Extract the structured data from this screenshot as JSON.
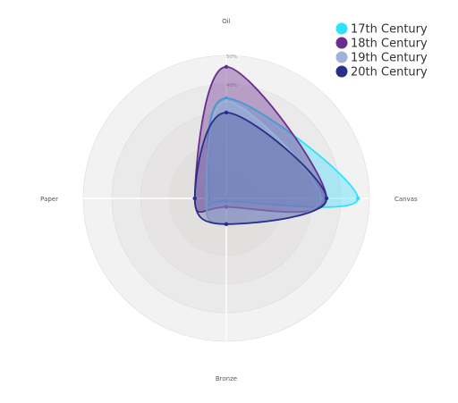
{
  "chart_data": {
    "type": "radar",
    "title": "",
    "axes": [
      "Oil",
      "Canvas",
      "Bronze",
      "Paper"
    ],
    "rmax": 50,
    "ticks": [
      40,
      50
    ],
    "tick_labels": [
      "40%",
      "50%"
    ],
    "grid": true,
    "legend_position": "top-right",
    "series": [
      {
        "name": "17th Century",
        "values": [
          35,
          46,
          1,
          6
        ],
        "color": "#2fe0ff",
        "fill_opacity": 0.35
      },
      {
        "name": "18th Century",
        "values": [
          46,
          35,
          3,
          11
        ],
        "color": "#6a2d8f",
        "fill_opacity": 0.4
      },
      {
        "name": "19th Century",
        "values": [
          34,
          33,
          9,
          7
        ],
        "color": "#9fb3d8",
        "fill_opacity": 0.55
      },
      {
        "name": "20th Century",
        "values": [
          30,
          35,
          9,
          11
        ],
        "color": "#2a2f8a",
        "fill_opacity": 0.25
      }
    ]
  }
}
